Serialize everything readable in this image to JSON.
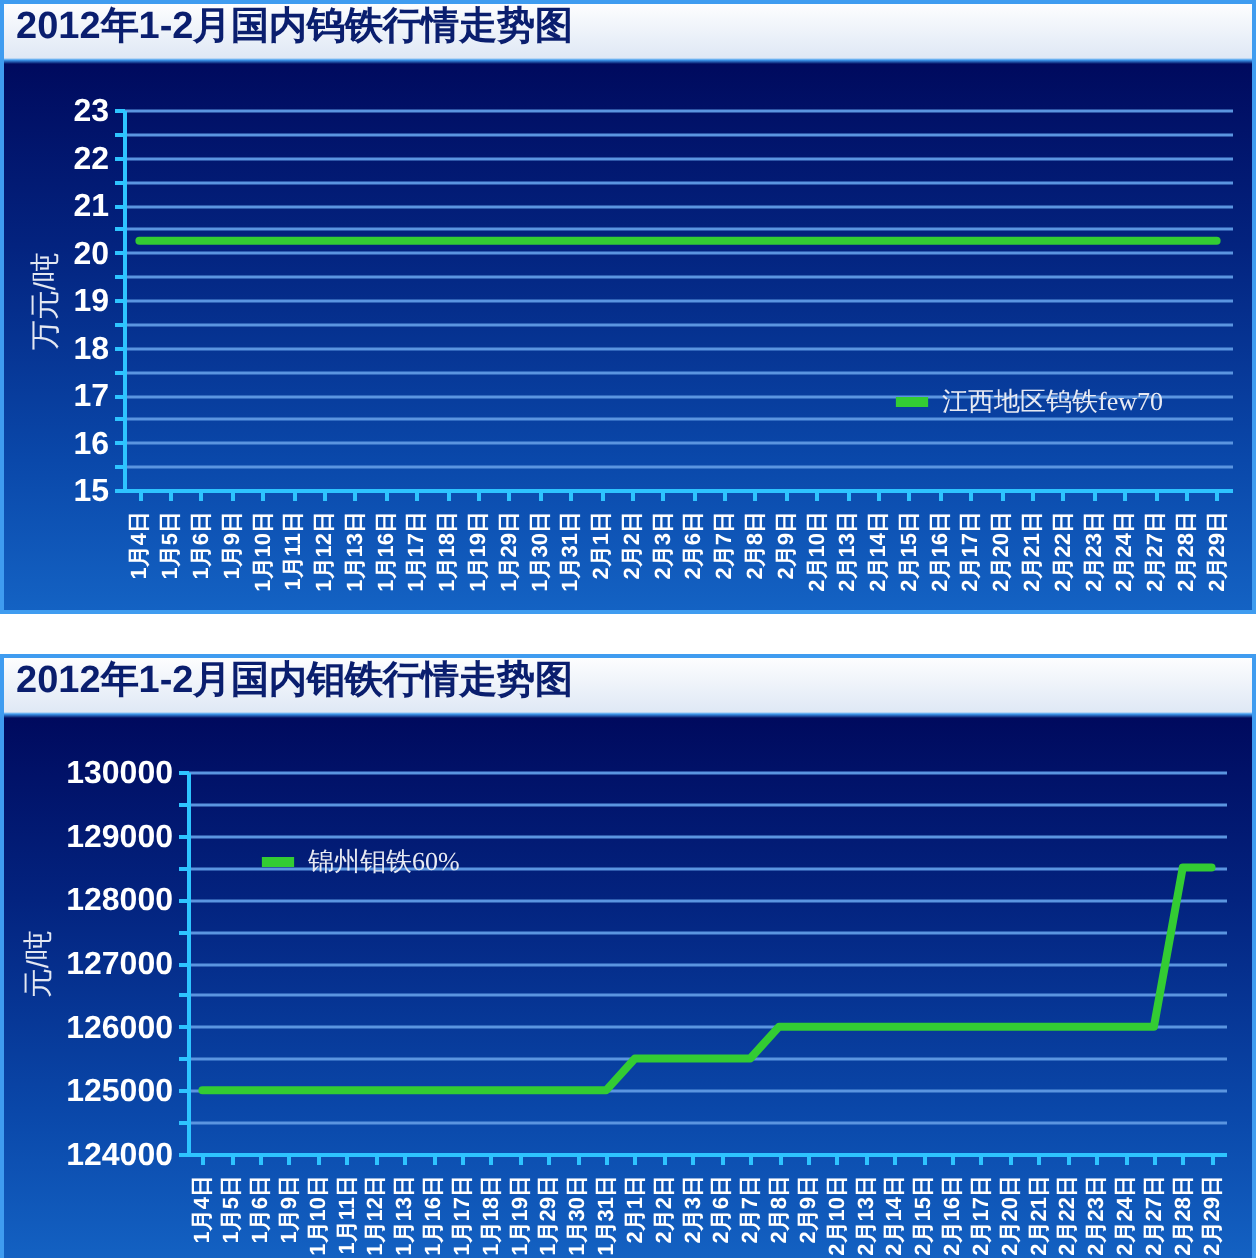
{
  "chart_data": [
    {
      "type": "line",
      "title": "2012年1-2月国内钨铁行情走势图",
      "ylabel": "万元/吨",
      "categories": [
        "1月4日",
        "1月5日",
        "1月6日",
        "1月9日",
        "1月10日",
        "1月11日",
        "1月12日",
        "1月13日",
        "1月16日",
        "1月17日",
        "1月18日",
        "1月19日",
        "1月29日",
        "1月30日",
        "1月31日",
        "2月1日",
        "2月2日",
        "2月3日",
        "2月6日",
        "2月7日",
        "2月8日",
        "2月9日",
        "2月10日",
        "2月13日",
        "2月14日",
        "2月15日",
        "2月16日",
        "2月17日",
        "2月20日",
        "2月21日",
        "2月22日",
        "2月23日",
        "2月24日",
        "2月27日",
        "2月28日",
        "2月29日"
      ],
      "series": [
        {
          "name": "江西地区钨铁few70",
          "color": "#33cc33",
          "values": [
            20.25,
            20.25,
            20.25,
            20.25,
            20.25,
            20.25,
            20.25,
            20.25,
            20.25,
            20.25,
            20.25,
            20.25,
            20.25,
            20.25,
            20.25,
            20.25,
            20.25,
            20.25,
            20.25,
            20.25,
            20.25,
            20.25,
            20.25,
            20.25,
            20.25,
            20.25,
            20.25,
            20.25,
            20.25,
            20.25,
            20.25,
            20.25,
            20.25,
            20.25,
            20.25,
            20.25
          ]
        }
      ],
      "ylim": [
        15,
        23
      ],
      "yticks": [
        15,
        {
          "value": 15.5,
          "label": null
        },
        16,
        {
          "value": 16.5,
          "label": null
        },
        17,
        {
          "value": 17.5,
          "label": null
        },
        18,
        {
          "value": 18.5,
          "label": null
        },
        19,
        {
          "value": 19.5,
          "label": null
        },
        20,
        {
          "value": 20.5,
          "label": null
        },
        21,
        {
          "value": 21.5,
          "label": null
        },
        22,
        {
          "value": 22.5,
          "label": null
        },
        23
      ],
      "grid": "y",
      "legend": "bottom right"
    },
    {
      "type": "line",
      "title": "2012年1-2月国内钼铁行情走势图",
      "ylabel": "元/吨",
      "categories": [
        "1月4日",
        "1月5日",
        "1月6日",
        "1月9日",
        "1月10日",
        "1月11日",
        "1月12日",
        "1月13日",
        "1月16日",
        "1月17日",
        "1月18日",
        "1月19日",
        "1月29日",
        "1月30日",
        "1月31日",
        "2月1日",
        "2月2日",
        "2月3日",
        "2月6日",
        "2月7日",
        "2月8日",
        "2月9日",
        "2月10日",
        "2月13日",
        "2月14日",
        "2月15日",
        "2月16日",
        "2月17日",
        "2月20日",
        "2月21日",
        "2月22日",
        "2月23日",
        "2月24日",
        "2月27日",
        "2月28日",
        "2月29日"
      ],
      "series": [
        {
          "name": "锦州钼铁60%",
          "color": "#33cc33",
          "values": [
            125000,
            125000,
            125000,
            125000,
            125000,
            125000,
            125000,
            125000,
            125000,
            125000,
            125000,
            125000,
            125000,
            125000,
            125000,
            125500,
            125500,
            125500,
            125500,
            125500,
            126000,
            126000,
            126000,
            126000,
            126000,
            126000,
            126000,
            126000,
            126000,
            126000,
            126000,
            126000,
            126000,
            126000,
            128500,
            128500
          ]
        }
      ],
      "ylim": [
        124000,
        130000
      ],
      "yticks": [
        124000,
        {
          "value": 124500,
          "label": null
        },
        125000,
        {
          "value": 125500,
          "label": null
        },
        126000,
        {
          "value": 126500,
          "label": null
        },
        127000,
        {
          "value": 127500,
          "label": null
        },
        128000,
        {
          "value": 128500,
          "label": null
        },
        129000,
        {
          "value": 129500,
          "label": null
        },
        130000
      ],
      "grid": "y",
      "legend": "top left"
    }
  ]
}
